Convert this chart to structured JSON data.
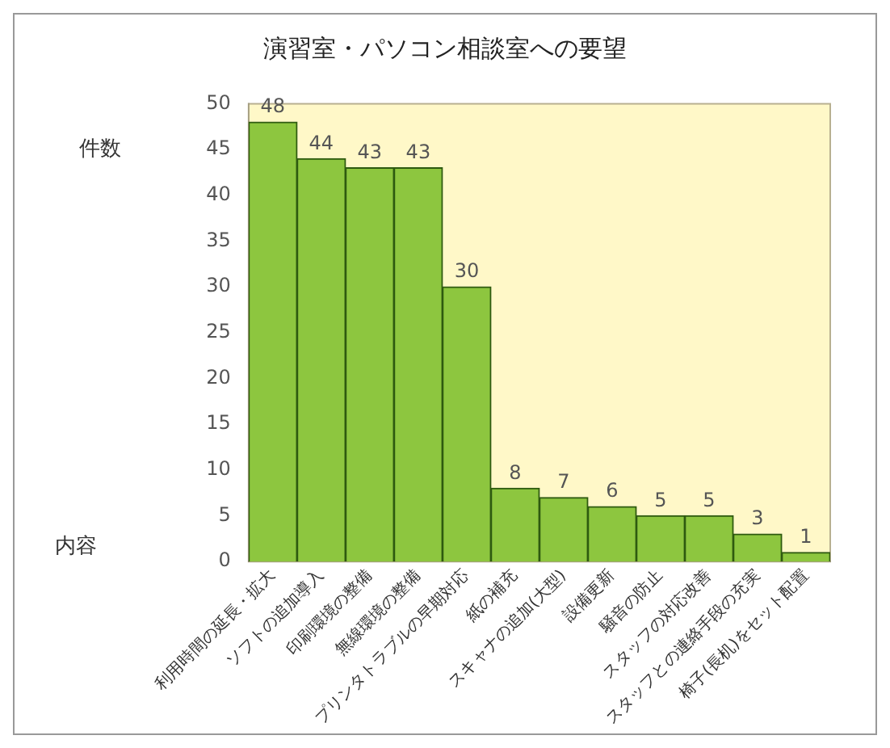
{
  "chart_data": {
    "type": "bar",
    "title": "演習室・パソコン相談室への要望",
    "ylabel": "件数",
    "xlabel": "内容",
    "categories": [
      "利用時間の延長・拡大",
      "ソフトの追加導入",
      "印刷環境の整備",
      "無線環境の整備",
      "プリンタトラブルの早期対応",
      "紙の補充",
      "スキャナの追加(大型)",
      "設備更新",
      "騒音の防止",
      "スタッフの対応改善",
      "スタッフとの連絡手段の充実",
      "椅子(長机)をセット配置"
    ],
    "values": [
      48,
      44,
      43,
      43,
      30,
      8,
      7,
      6,
      5,
      5,
      3,
      1
    ],
    "color": "#8dc63f",
    "ylim": [
      0,
      50
    ],
    "yticks": [
      0,
      5,
      10,
      15,
      20,
      25,
      30,
      35,
      40,
      45,
      50
    ],
    "data_labels": true,
    "grid": false,
    "legend": false
  }
}
